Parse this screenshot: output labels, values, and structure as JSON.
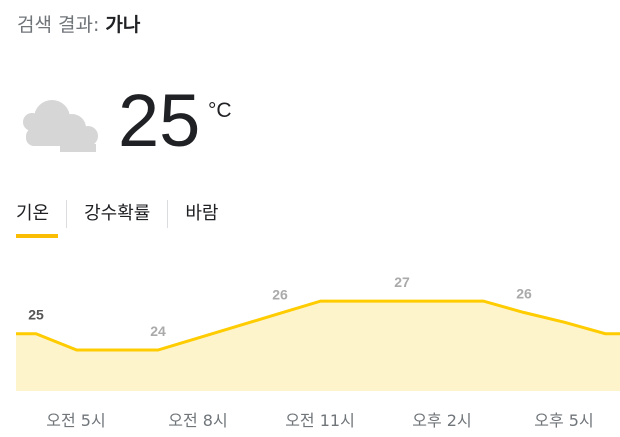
{
  "search": {
    "prefix": "검색 결과: ",
    "query": "가나"
  },
  "current": {
    "icon": "cloudy-icon",
    "temperature": "25",
    "unit": "°C"
  },
  "tabs": [
    {
      "label": "기온",
      "active": true
    },
    {
      "label": "강수확률"
    },
    {
      "label": "바람"
    }
  ],
  "colors": {
    "line": "#ffcc00",
    "fill": "#fef4cc",
    "accent": "#fbbc04"
  },
  "chart_data": {
    "type": "area",
    "x_labels": [
      "오전 5시",
      "오전 8시",
      "오전 11시",
      "오후 2시",
      "오후 5시"
    ],
    "labeled_values": [
      {
        "label": "25",
        "value": 25,
        "hour_index": 0,
        "current": true
      },
      {
        "label": "24",
        "value": 24,
        "hour_index": 3
      },
      {
        "label": "26",
        "value": 26,
        "hour_index": 6
      },
      {
        "label": "27",
        "value": 27,
        "hour_index": 9
      },
      {
        "label": "26",
        "value": 26,
        "hour_index": 12
      }
    ],
    "hourly_values": [
      25,
      24,
      24,
      24,
      24.75,
      25.5,
      26.25,
      27,
      27,
      27,
      27,
      27,
      26.3,
      25.7,
      25
    ]
  }
}
